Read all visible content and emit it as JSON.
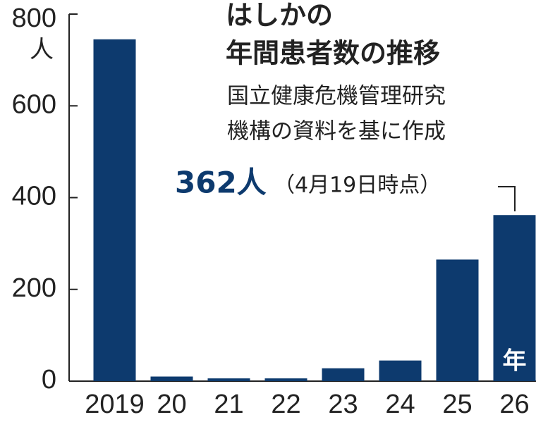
{
  "chart_data": {
    "type": "bar",
    "title": [
      "はしかの",
      "年間患者数の推移"
    ],
    "source": [
      "国立健康危機管理研究",
      "機構の資料を基に作成"
    ],
    "y_unit": "人",
    "annotation": {
      "value_text": "362人",
      "note": "（4月19日時点）"
    },
    "last_bar_label": "年",
    "categories": [
      "2019",
      "20",
      "21",
      "22",
      "23",
      "24",
      "25",
      "26"
    ],
    "values": [
      745,
      10,
      6,
      6,
      28,
      45,
      265,
      362
    ],
    "color": "#0d3a6e",
    "ylim": [
      0,
      800
    ],
    "yticks": [
      0,
      200,
      400,
      600,
      800
    ]
  }
}
